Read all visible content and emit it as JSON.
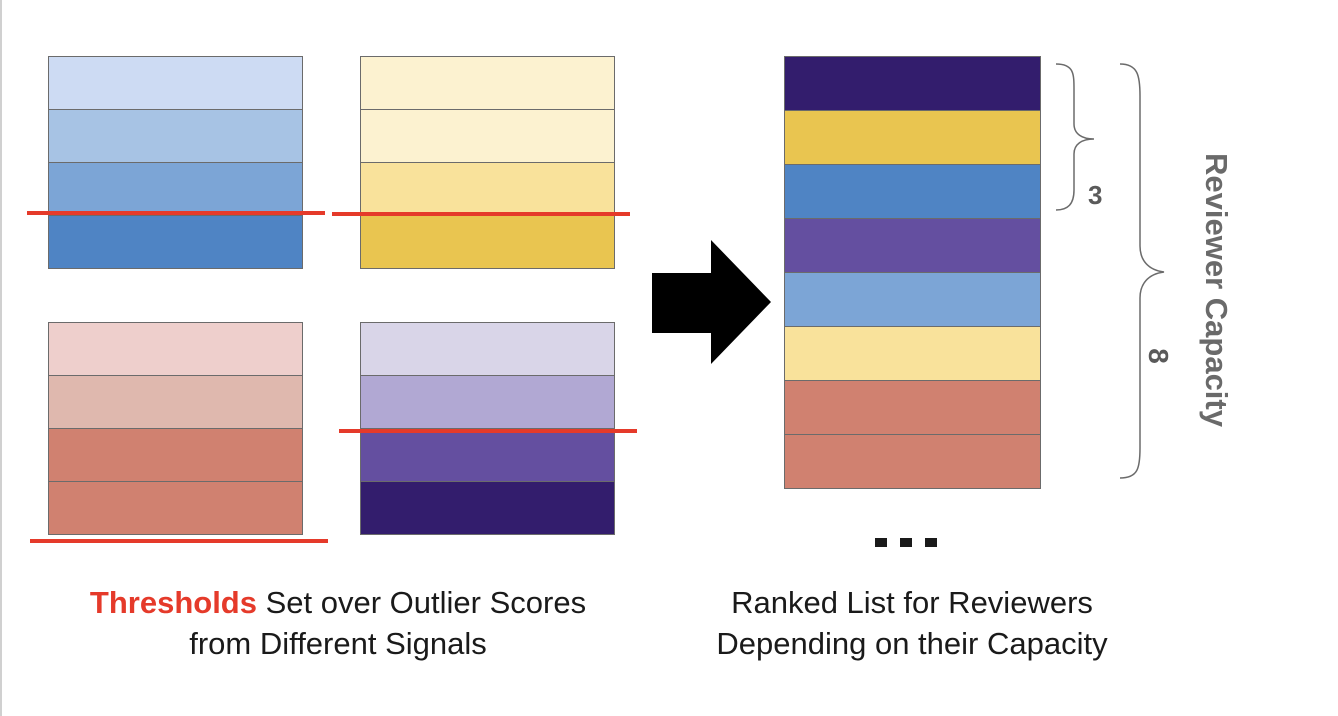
{
  "captions": {
    "left_highlight": "Thresholds",
    "left_rest": " Set over Outlier Scores",
    "left_line2": "from Different Signals",
    "right_line1": "Ranked List for Reviewers",
    "right_line2": "Depending on their Capacity"
  },
  "brace_labels": {
    "inner": "3",
    "outer": "8"
  },
  "axis_label": "Reviewer Capacity",
  "signal_stacks": [
    {
      "name": "blue-signal",
      "colors": [
        "#cddbf3",
        "#a7c3e4",
        "#7ca5d6",
        "#4f84c4"
      ],
      "threshold_after": 3
    },
    {
      "name": "yellow-signal",
      "colors": [
        "#fcf2d0",
        "#fcf2d0",
        "#f9e29b",
        "#e9c550"
      ],
      "threshold_after": 3
    },
    {
      "name": "red-signal",
      "colors": [
        "#eecfcc",
        "#dfb8ae",
        "#d08170",
        "#d08170"
      ],
      "threshold_after": 4
    },
    {
      "name": "purple-signal",
      "colors": [
        "#d9d5e8",
        "#b1a8d3",
        "#644fa0",
        "#331d6d"
      ],
      "threshold_after": 2
    }
  ],
  "ranked_list": [
    "#331d6d",
    "#e9c550",
    "#4f84c4",
    "#644fa0",
    "#7ca5d6",
    "#f9e29b",
    "#d08170",
    "#d08170"
  ],
  "threshold_color": "#e53a2a"
}
